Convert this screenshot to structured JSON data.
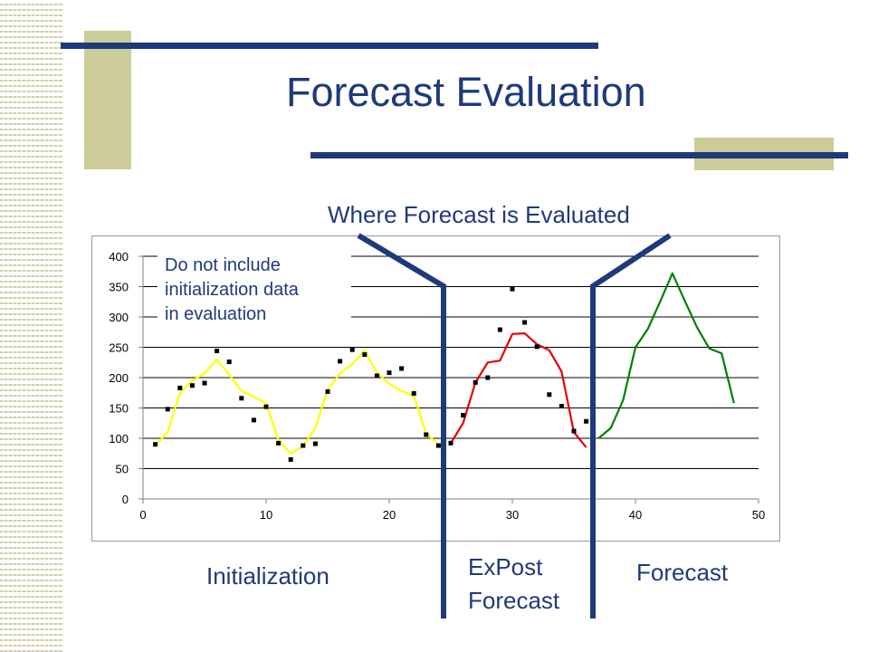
{
  "slide": {
    "title": "Forecast Evaluation",
    "evaluated_label": "Where Forecast is Evaluated",
    "note_lines": [
      "Do not include",
      "initialization data",
      "in evaluation"
    ],
    "region_labels": {
      "initialization": "Initialization",
      "expost_line1": "ExPost",
      "expost_line2": "Forecast",
      "forecast": "Forecast"
    }
  },
  "colors": {
    "accent_blue": "#1f3a7a",
    "decor_tan": "#cccc99",
    "init_series": "#ffff00",
    "expost_series": "#e60000",
    "forecast_series": "#008000",
    "observed_points": "#000000"
  },
  "chart_data": {
    "type": "line",
    "xlim": [
      0,
      50
    ],
    "ylim": [
      0,
      400
    ],
    "x_ticks": [
      0,
      10,
      20,
      30,
      40,
      50
    ],
    "y_ticks": [
      0,
      50,
      100,
      150,
      200,
      250,
      300,
      350,
      400
    ],
    "grid": "horizontal",
    "series": [
      {
        "kind": "line",
        "color": "#ffff00",
        "points": [
          [
            1,
            88
          ],
          [
            2,
            110
          ],
          [
            3,
            175
          ],
          [
            4,
            195
          ],
          [
            5,
            207
          ],
          [
            6,
            230
          ],
          [
            7,
            205
          ],
          [
            8,
            178
          ],
          [
            9,
            168
          ],
          [
            10,
            158
          ],
          [
            11,
            97
          ],
          [
            12,
            75
          ],
          [
            13,
            87
          ],
          [
            14,
            117
          ],
          [
            15,
            180
          ],
          [
            16,
            207
          ],
          [
            17,
            222
          ],
          [
            18,
            245
          ],
          [
            19,
            208
          ],
          [
            20,
            190
          ],
          [
            21,
            178
          ],
          [
            22,
            170
          ],
          [
            23,
            108
          ],
          [
            24,
            90
          ]
        ]
      },
      {
        "kind": "line",
        "color": "#e60000",
        "points": [
          [
            25,
            92
          ],
          [
            26,
            125
          ],
          [
            27,
            192
          ],
          [
            28,
            225
          ],
          [
            29,
            228
          ],
          [
            30,
            272
          ],
          [
            31,
            273
          ],
          [
            32,
            255
          ],
          [
            33,
            245
          ],
          [
            34,
            210
          ],
          [
            35,
            110
          ],
          [
            36,
            85
          ]
        ]
      },
      {
        "kind": "line",
        "color": "#008000",
        "points": [
          [
            37,
            100
          ],
          [
            38,
            117
          ],
          [
            39,
            163
          ],
          [
            40,
            250
          ],
          [
            41,
            280
          ],
          [
            42,
            325
          ],
          [
            43,
            372
          ],
          [
            44,
            327
          ],
          [
            45,
            283
          ],
          [
            46,
            248
          ],
          [
            47,
            240
          ],
          [
            48,
            158
          ]
        ]
      },
      {
        "kind": "scatter",
        "color": "#000000",
        "points": [
          [
            1,
            90
          ],
          [
            2,
            148
          ],
          [
            3,
            183
          ],
          [
            4,
            187
          ],
          [
            5,
            191
          ],
          [
            6,
            244
          ],
          [
            7,
            226
          ],
          [
            8,
            166
          ],
          [
            9,
            130
          ],
          [
            10,
            152
          ],
          [
            11,
            92
          ],
          [
            12,
            65
          ],
          [
            13,
            88
          ],
          [
            14,
            91
          ],
          [
            15,
            177
          ],
          [
            16,
            227
          ],
          [
            17,
            246
          ],
          [
            18,
            238
          ],
          [
            19,
            203
          ],
          [
            20,
            208
          ],
          [
            21,
            215
          ],
          [
            22,
            174
          ],
          [
            23,
            106
          ],
          [
            24,
            88
          ],
          [
            25,
            92
          ],
          [
            26,
            138
          ],
          [
            27,
            192
          ],
          [
            28,
            200
          ],
          [
            29,
            279
          ],
          [
            30,
            346
          ],
          [
            31,
            291
          ],
          [
            32,
            251
          ],
          [
            33,
            172
          ],
          [
            34,
            153
          ],
          [
            35,
            112
          ],
          [
            36,
            128
          ]
        ]
      }
    ]
  }
}
